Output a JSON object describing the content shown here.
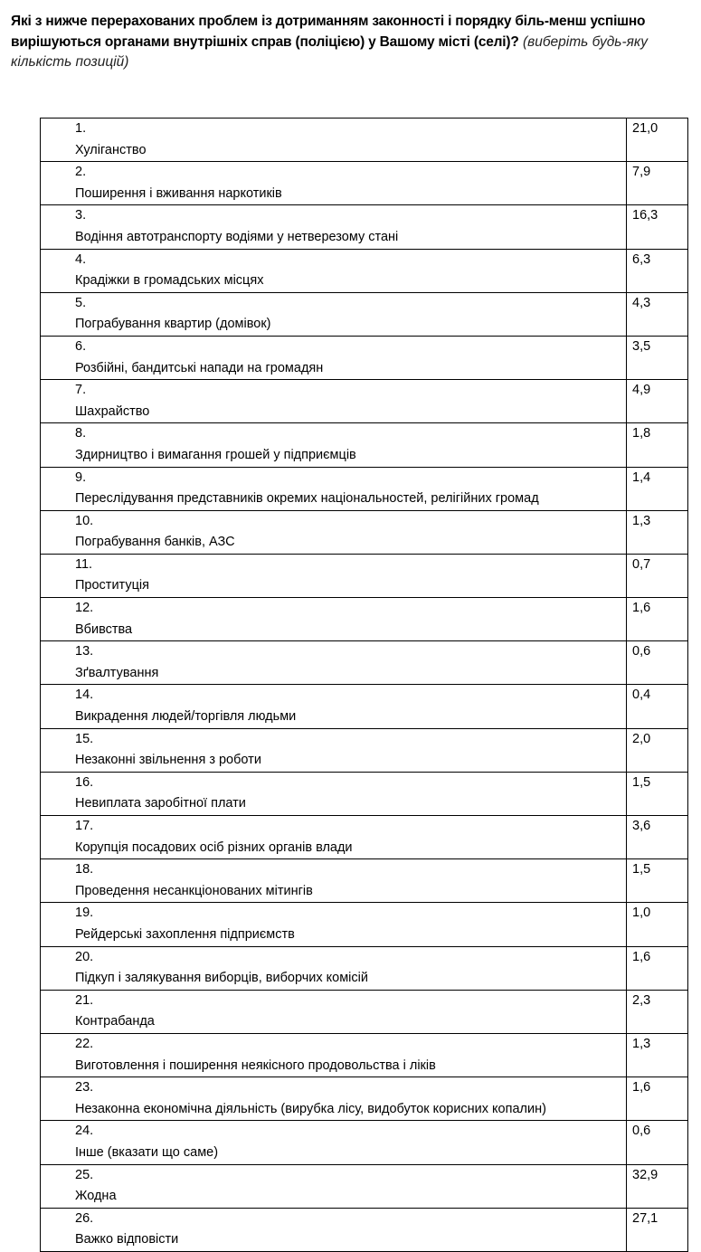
{
  "question": {
    "bold": "Які з нижче перерахованих проблем із дотриманням законності і порядку біль-менш успішно вирішуються органами внутрішніх справ (поліцією) у Вашому місті (селі)?",
    "italic": "(виберіть будь-яку кількість позицій)"
  },
  "rows": [
    {
      "n": "1.",
      "label": "Хуліганство",
      "value": "21,0"
    },
    {
      "n": "2.",
      "label": "Поширення і вживання наркотиків",
      "value": "7,9"
    },
    {
      "n": "3.",
      "label": "Водіння автотранспорту водіями у нетверезому стані",
      "value": "16,3"
    },
    {
      "n": "4.",
      "label": "Крадіжки в громадських місцях",
      "value": "6,3"
    },
    {
      "n": "5.",
      "label": "Пограбування квартир (домівок)",
      "value": "4,3"
    },
    {
      "n": "6.",
      "label": "Розбійні, бандитські напади на громадян",
      "value": "3,5"
    },
    {
      "n": "7.",
      "label": "Шахрайство",
      "value": "4,9"
    },
    {
      "n": "8.",
      "label": "Здирництво і вимагання грошей у підприємців",
      "value": "1,8"
    },
    {
      "n": "9.",
      "label": "Переслідування представників окремих національностей, релігійних громад",
      "value": "1,4"
    },
    {
      "n": "10.",
      "label": "Пограбування банків, АЗС",
      "value": "1,3"
    },
    {
      "n": "11.",
      "label": "Проституція",
      "value": "0,7"
    },
    {
      "n": "12.",
      "label": "Вбивства",
      "value": "1,6"
    },
    {
      "n": "13.",
      "label": "Зґвалтування",
      "value": "0,6"
    },
    {
      "n": "14.",
      "label": "Викрадення людей/торгівля людьми",
      "value": "0,4"
    },
    {
      "n": "15.",
      "label": "Незаконні звільнення з роботи",
      "value": "2,0"
    },
    {
      "n": "16.",
      "label": "Невиплата заробітної плати",
      "value": "1,5"
    },
    {
      "n": "17.",
      "label": "Корупція посадових осіб різних органів влади",
      "value": "3,6"
    },
    {
      "n": "18.",
      "label": "Проведення несанкціонованих мітингів",
      "value": "1,5"
    },
    {
      "n": "19.",
      "label": "Рейдерські захоплення підприємств",
      "value": "1,0"
    },
    {
      "n": "20.",
      "label": "Підкуп і залякування виборців, виборчих комісій",
      "value": "1,6"
    },
    {
      "n": "21.",
      "label": "Контрабанда",
      "value": "2,3"
    },
    {
      "n": "22.",
      "label": "Виготовлення і поширення неякісного продовольства і ліків",
      "value": "1,3"
    },
    {
      "n": "23.",
      "label": "Незаконна економічна діяльність (вирубка лісу, видобуток корисних копалин)",
      "value": "1,6"
    },
    {
      "n": "24.",
      "label": "Інше (вказати що саме)",
      "value": "0,6"
    },
    {
      "n": "25.",
      "label": "Жодна",
      "value": "32,9"
    },
    {
      "n": "26.",
      "label": "Важко відповісти",
      "value": "27,1"
    }
  ]
}
